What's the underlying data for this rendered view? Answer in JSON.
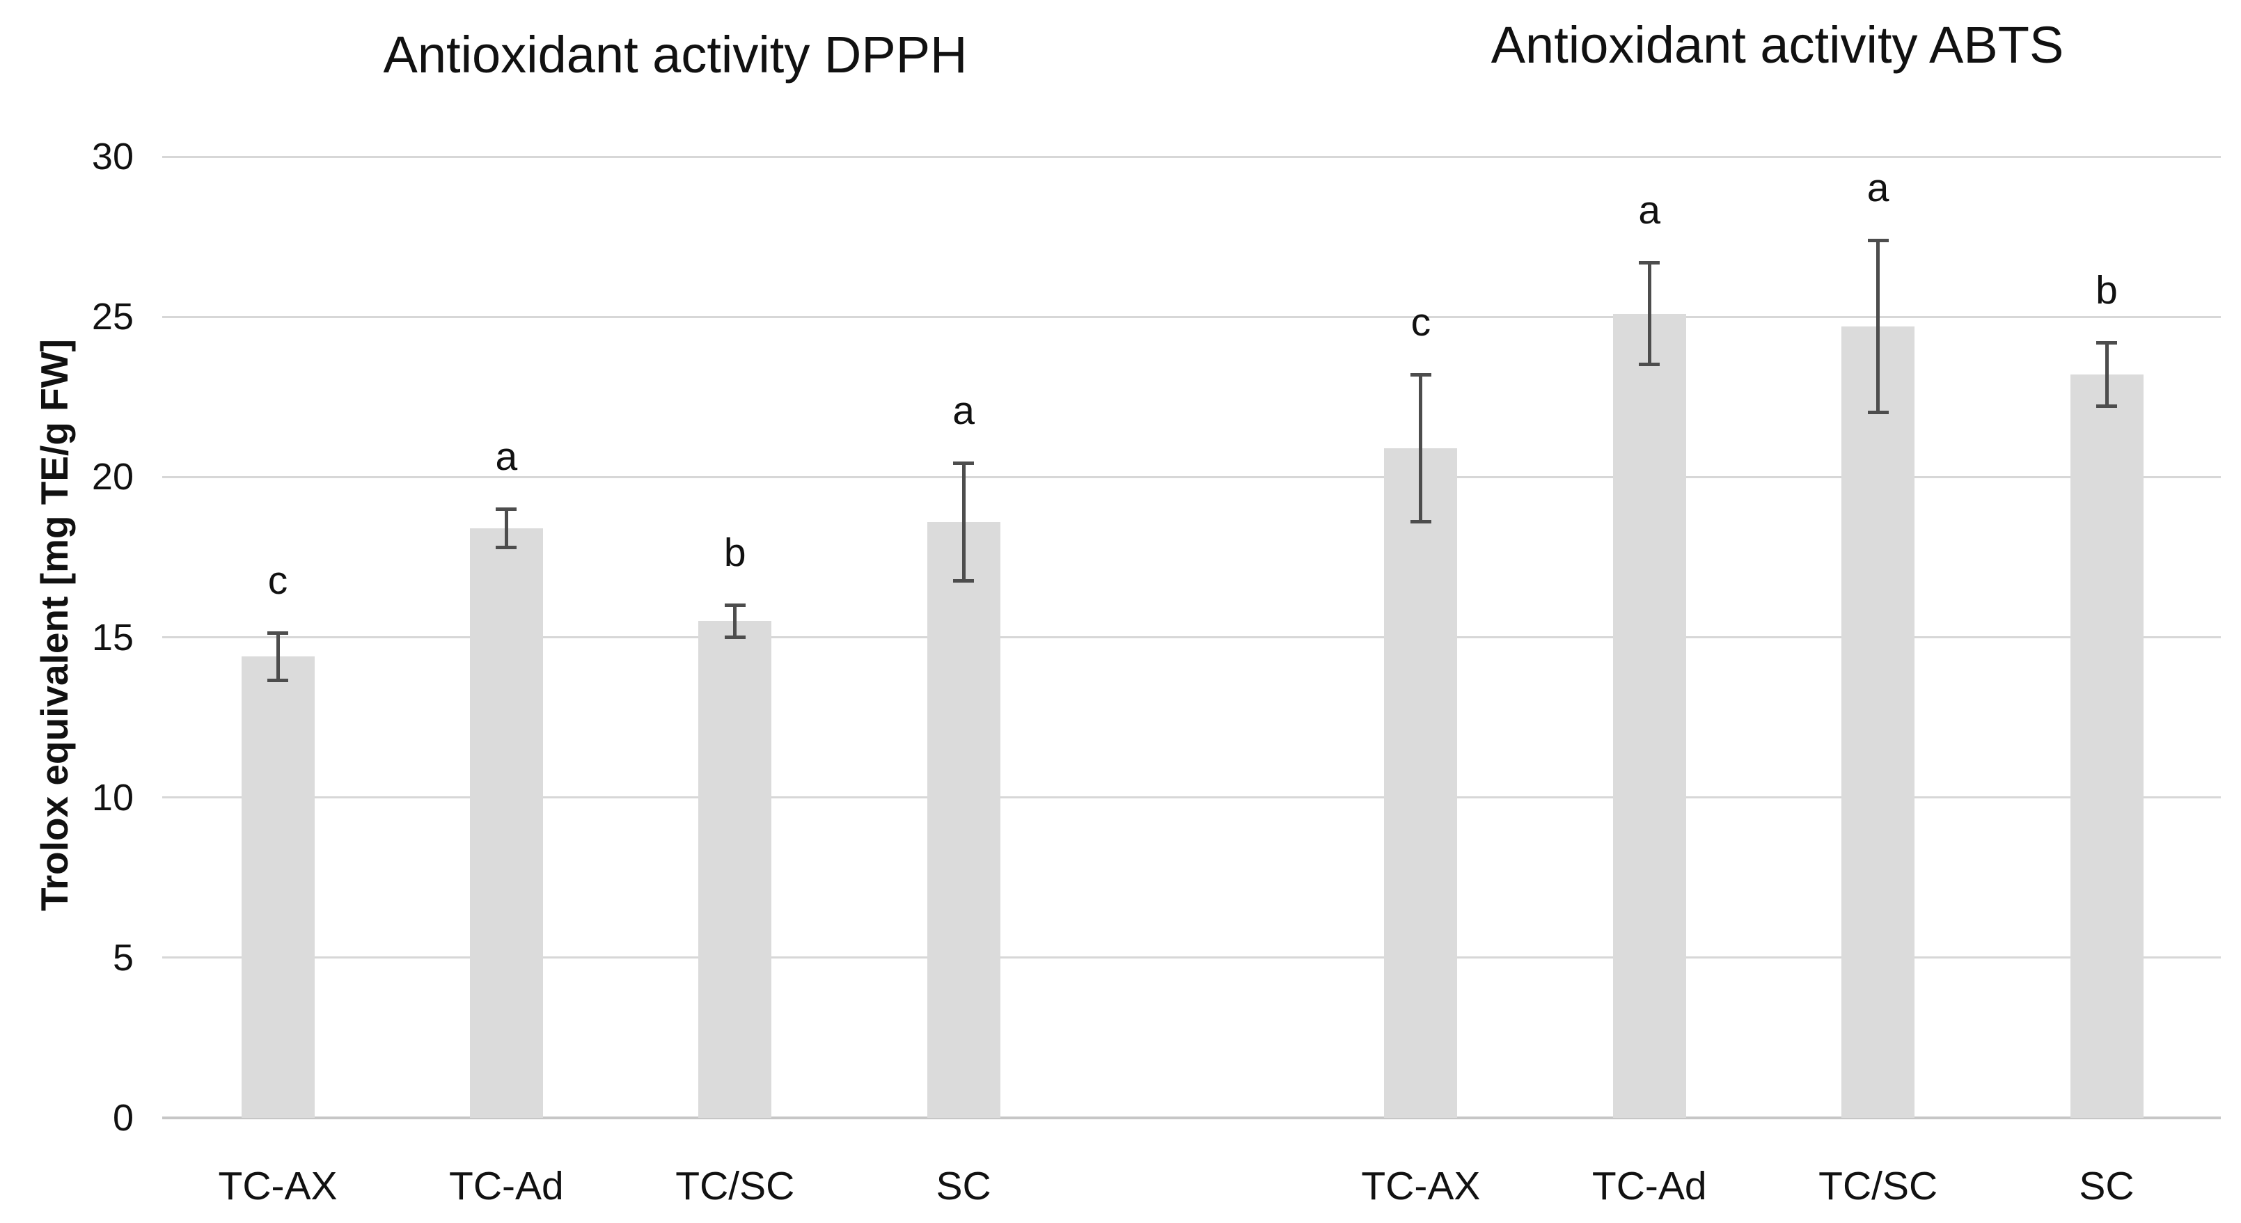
{
  "chart_data": {
    "type": "bar",
    "ylabel": "Trolox equivalent [mg TE/g FW]",
    "ylim": [
      0,
      30
    ],
    "yticks": [
      0,
      5,
      10,
      15,
      20,
      25,
      30
    ],
    "grid": true,
    "legend": "none",
    "error_bars": true,
    "colors": {
      "bar": "#dbdbdb",
      "error": "#4d4d4d",
      "grid": "#d7d7d7",
      "baseline": "#c6c6c6",
      "text": "#111111"
    },
    "charts": [
      {
        "title": "Antioxidant activity DPPH",
        "categories": [
          "TC-AX",
          "TC-Ad",
          "TC/SC",
          "SC"
        ],
        "values": [
          14.4,
          18.4,
          15.5,
          18.6
        ],
        "errors": [
          0.75,
          0.6,
          0.5,
          1.85
        ],
        "sig_letters": [
          "c",
          "a",
          "b",
          "a"
        ]
      },
      {
        "title": "Antioxidant activity ABTS",
        "categories": [
          "TC-AX",
          "TC-Ad",
          "TC/SC",
          "SC"
        ],
        "values": [
          20.9,
          25.1,
          24.7,
          23.2
        ],
        "errors": [
          2.3,
          1.6,
          2.7,
          1.0
        ],
        "sig_letters": [
          "c",
          "a",
          "a",
          "b"
        ]
      }
    ]
  }
}
